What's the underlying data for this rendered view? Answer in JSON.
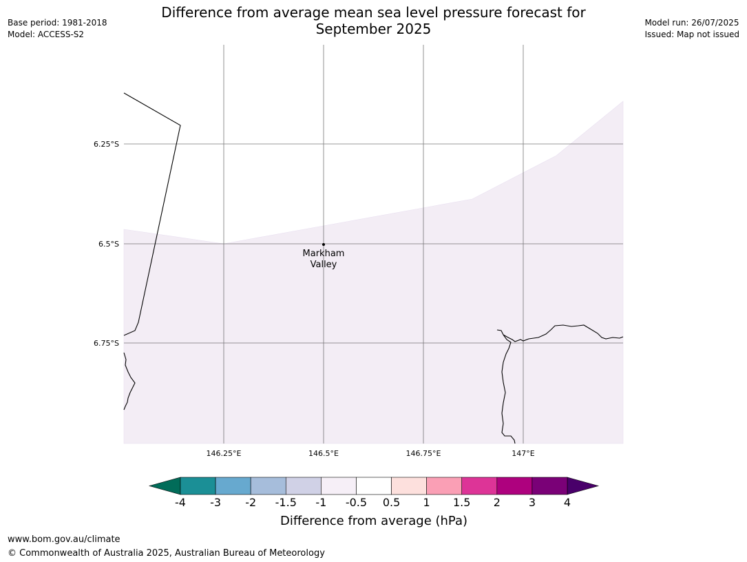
{
  "title_line1": "Difference from average mean sea level pressure forecast for",
  "title_line2": "September 2025",
  "base_period": "Base period: 1981-2018",
  "model": "Model: ACCESS-S2",
  "model_run": "Model run: 26/07/2025",
  "issued": "Issued: Map not issued",
  "map": {
    "longitude_labels": [
      "146.25°E",
      "146.5°E",
      "146.75°E",
      "147°E"
    ],
    "latitude_labels": [
      "6.25°S",
      "6.5°S",
      "6.75°S"
    ],
    "place": {
      "name_line1": "Markham",
      "name_line2": "Valley"
    },
    "field_color": "#f3edf5"
  },
  "colorbar": {
    "title": "Difference from average (hPa)",
    "ticks": [
      "-4",
      "-3",
      "-2",
      "-1.5",
      "-1",
      "-0.5",
      "0.5",
      "1",
      "1.5",
      "2",
      "3",
      "4"
    ],
    "colors": [
      "#1b8f96",
      "#67a9cf",
      "#a6bddb",
      "#d0d1e6",
      "#f6eff7",
      "#ffffff",
      "#fde0dd",
      "#fa9fb5",
      "#dd3497",
      "#ae017e",
      "#7a0177"
    ],
    "under_color": "#016c59",
    "over_color": "#49006a"
  },
  "footer_url": "www.bom.gov.au/climate",
  "footer_copyright": "© Commonwealth of Australia 2025, Australian Bureau of Meteorology"
}
